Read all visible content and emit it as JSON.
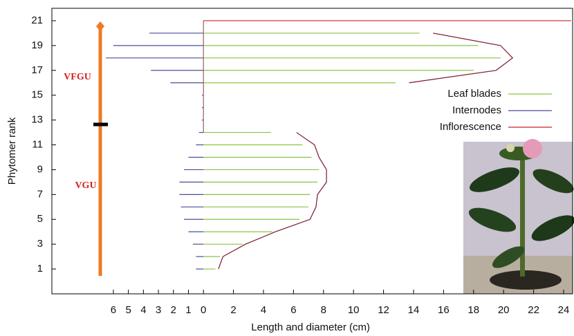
{
  "chart_data": {
    "type": "bar",
    "orientation": "horizontal",
    "xlabel": "Length and diameter (cm)",
    "ylabel": "Phytomer rank",
    "annotations": [
      "VFGU",
      "VGU"
    ],
    "y": [
      1,
      2,
      3,
      4,
      5,
      6,
      7,
      8,
      9,
      10,
      11,
      12,
      13,
      14,
      15,
      16,
      17,
      18,
      19,
      20,
      21
    ],
    "series": [
      {
        "name": "Leaf blades",
        "color": "#86c440",
        "values": [
          0.8,
          1.1,
          2.6,
          4.6,
          6.4,
          7.0,
          7.1,
          7.6,
          7.7,
          7.2,
          6.6,
          4.5,
          null,
          null,
          null,
          12.8,
          18.0,
          19.8,
          18.3,
          14.4,
          null
        ]
      },
      {
        "name": "Internodes",
        "color": "#4b4b96",
        "values": [
          -0.5,
          -0.5,
          -0.7,
          -1.0,
          -1.3,
          -1.5,
          -1.6,
          -1.6,
          -1.3,
          -1.0,
          -0.5,
          -0.3,
          -0.1,
          -0.1,
          -0.1,
          -2.2,
          -3.5,
          -6.5,
          -6.0,
          -3.6,
          null
        ]
      },
      {
        "name": "Inflorescence",
        "color": "#c8202a",
        "values": [
          null,
          null,
          null,
          null,
          null,
          null,
          null,
          null,
          null,
          null,
          null,
          null,
          null,
          null,
          null,
          null,
          null,
          null,
          null,
          null,
          24.5
        ]
      },
      {
        "type": "line",
        "color": "#7a1a2a",
        "values": [
          1.0,
          1.3,
          2.8,
          4.8,
          7.1,
          7.5,
          7.6,
          8.2,
          8.2,
          7.7,
          7.4,
          6.2,
          null,
          null,
          null,
          13.7,
          19.5,
          20.6,
          19.8,
          15.3,
          null
        ]
      }
    ],
    "xlim": [
      -10.1,
      24.6
    ],
    "ylim": [
      -1,
      22
    ],
    "xticks": [
      {
        "value": -6,
        "label": "6"
      },
      {
        "value": -5,
        "label": "5"
      },
      {
        "value": -4,
        "label": "4"
      },
      {
        "value": -3,
        "label": "3"
      },
      {
        "value": -2,
        "label": "2"
      },
      {
        "value": -1,
        "label": "1"
      },
      0,
      2,
      4,
      6,
      8,
      10,
      12,
      14,
      16,
      18,
      20,
      22,
      24
    ],
    "yticks": [
      1,
      3,
      5,
      7,
      9,
      11,
      13,
      15,
      17,
      19,
      21
    ],
    "legend": "upper-right"
  }
}
